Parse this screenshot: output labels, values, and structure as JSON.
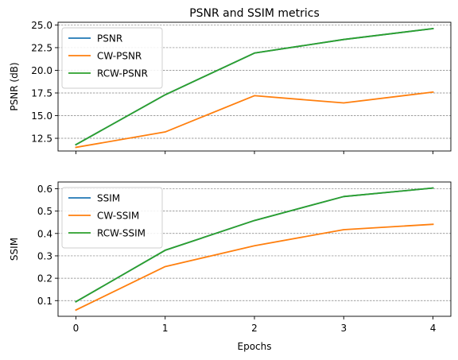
{
  "chart_data": [
    {
      "type": "line",
      "title": "PSNR and SSIM metrics",
      "xlabel": "",
      "ylabel": "PSNR (dB)",
      "x": [
        0,
        1,
        2,
        3,
        4
      ],
      "xlim": [
        -0.2,
        4.2
      ],
      "ylim": [
        11.1,
        25.3
      ],
      "yticks": [
        12.5,
        15.0,
        17.5,
        20.0,
        22.5,
        25.0
      ],
      "ytick_labels": [
        "12.5",
        "15.0",
        "17.5",
        "20.0",
        "22.5",
        "25.0"
      ],
      "xtick_labels": [
        "",
        "",
        "",
        "",
        ""
      ],
      "grid": "y-dashed",
      "legend": "upper-left",
      "series": [
        {
          "name": "PSNR",
          "color": "#1f77b4",
          "values": [
            11.8,
            17.3,
            21.9,
            23.4,
            24.6
          ]
        },
        {
          "name": "CW-PSNR",
          "color": "#ff7f0e",
          "values": [
            11.5,
            13.2,
            17.2,
            16.4,
            17.6
          ]
        },
        {
          "name": "RCW-PSNR",
          "color": "#2ca02c",
          "values": [
            11.8,
            17.3,
            21.9,
            23.4,
            24.6
          ]
        }
      ]
    },
    {
      "type": "line",
      "title": "",
      "xlabel": "Epochs",
      "ylabel": "SSIM",
      "x": [
        0,
        1,
        2,
        3,
        4
      ],
      "xlim": [
        -0.2,
        4.2
      ],
      "ylim": [
        0.03,
        0.63
      ],
      "yticks": [
        0.1,
        0.2,
        0.3,
        0.4,
        0.5,
        0.6
      ],
      "ytick_labels": [
        "0.1",
        "0.2",
        "0.3",
        "0.4",
        "0.5",
        "0.6"
      ],
      "xtick_labels": [
        "0",
        "1",
        "2",
        "3",
        "4"
      ],
      "grid": "y-dashed",
      "legend": "upper-left",
      "series": [
        {
          "name": "SSIM",
          "color": "#1f77b4",
          "values": [
            0.095,
            0.325,
            0.458,
            0.565,
            0.603
          ]
        },
        {
          "name": "CW-SSIM",
          "color": "#ff7f0e",
          "values": [
            0.058,
            0.252,
            0.345,
            0.417,
            0.441
          ]
        },
        {
          "name": "RCW-SSIM",
          "color": "#2ca02c",
          "values": [
            0.095,
            0.325,
            0.458,
            0.565,
            0.603
          ]
        }
      ]
    }
  ]
}
